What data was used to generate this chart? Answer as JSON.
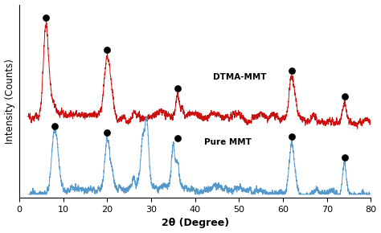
{
  "xlabel": "2θ (Degree)",
  "ylabel": "Intensity (Counts)",
  "xlim": [
    0,
    80
  ],
  "background_color": "#ffffff",
  "dtma_label": "DTMA-MMT",
  "pure_label": "Pure MMT",
  "dtma_color": "#cc1010",
  "pure_color": "#5599cc",
  "dtma_dot_x": [
    6,
    20,
    36,
    62,
    74
  ],
  "pure_dot_x": [
    8,
    20,
    36,
    62,
    74
  ]
}
